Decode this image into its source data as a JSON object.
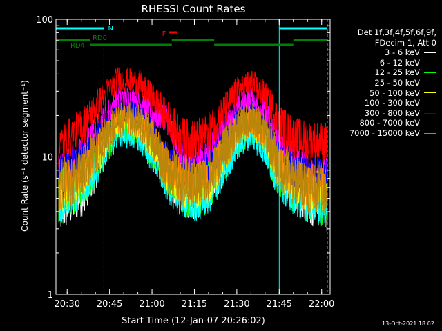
{
  "chart_data": {
    "type": "line",
    "title": "RHESSI Count Rates",
    "xlabel": "Start Time (12-Jan-07 20:26:02)",
    "ylabel": "Count Rate (s⁻¹ detector segment⁻¹)",
    "yscale": "log",
    "xlim": [
      "20:26:02",
      "22:03"
    ],
    "ylim": [
      1,
      100
    ],
    "xticks": [
      "20:30",
      "20:45",
      "21:00",
      "21:15",
      "21:30",
      "21:45",
      "22:00"
    ],
    "yticks": [
      "1",
      "10",
      "100"
    ],
    "series": [
      {
        "name": "3 - 6 keV",
        "color": "#ffffff",
        "t": [
          "20:27",
          "20:35",
          "20:40",
          "20:48",
          "20:55",
          "21:00",
          "21:05",
          "21:10",
          "21:15",
          "21:20",
          "21:25",
          "21:30",
          "21:35",
          "21:40",
          "21:45",
          "21:50",
          "21:55",
          "22:02"
        ],
        "values": [
          3.8,
          5.0,
          7.5,
          20.0,
          19.0,
          13.0,
          7.5,
          5.2,
          4.8,
          5.5,
          8.0,
          15.0,
          19.0,
          14.0,
          8.0,
          5.5,
          4.5,
          4.0
        ]
      },
      {
        "name": "6 - 12 keV",
        "color": "#ff00ff",
        "t": [
          "20:27",
          "20:35",
          "20:40",
          "20:48",
          "20:55",
          "21:00",
          "21:05",
          "21:10",
          "21:15",
          "21:20",
          "21:25",
          "21:30",
          "21:35",
          "21:40",
          "21:45",
          "21:50",
          "21:55",
          "22:02"
        ],
        "values": [
          7.5,
          10.0,
          15.0,
          27.0,
          26.0,
          20.0,
          20.0,
          10.0,
          8.5,
          10.0,
          15.0,
          22.0,
          27.0,
          21.0,
          12.0,
          9.0,
          8.0,
          7.5
        ]
      },
      {
        "name": "12 - 25 keV",
        "color": "#00ff00",
        "t": [
          "20:27",
          "20:35",
          "20:40",
          "20:48",
          "20:55",
          "21:00",
          "21:05",
          "21:10",
          "21:15",
          "21:20",
          "21:25",
          "21:30",
          "21:35",
          "21:40",
          "21:45",
          "21:50",
          "21:55",
          "22:02"
        ],
        "values": [
          5.0,
          6.5,
          9.0,
          17.0,
          16.5,
          12.0,
          7.5,
          5.8,
          5.3,
          6.0,
          9.0,
          14.0,
          17.0,
          13.0,
          7.5,
          6.0,
          5.3,
          5.0
        ]
      },
      {
        "name": "25 - 50 keV",
        "color": "#00ffff",
        "t": [
          "20:27",
          "20:35",
          "20:40",
          "20:48",
          "20:55",
          "21:00",
          "21:05",
          "21:10",
          "21:15",
          "21:20",
          "21:25",
          "21:30",
          "21:35",
          "21:40",
          "21:45",
          "21:50",
          "21:55",
          "22:02"
        ],
        "values": [
          4.5,
          5.5,
          8.0,
          14.5,
          14.0,
          10.0,
          6.5,
          5.0,
          4.6,
          5.2,
          7.5,
          12.0,
          14.5,
          11.0,
          6.5,
          5.2,
          4.7,
          4.5
        ]
      },
      {
        "name": "50 - 100 keV",
        "color": "#ffff00",
        "t": [
          "20:27",
          "20:35",
          "20:40",
          "20:48",
          "20:55",
          "21:00",
          "21:05",
          "21:10",
          "21:15",
          "21:20",
          "21:25",
          "21:30",
          "21:35",
          "21:40",
          "21:45",
          "21:50",
          "21:55",
          "22:02"
        ],
        "values": [
          5.5,
          7.0,
          10.0,
          18.0,
          17.5,
          13.0,
          8.0,
          6.3,
          5.8,
          6.5,
          10.0,
          15.0,
          18.0,
          14.0,
          8.0,
          6.5,
          5.8,
          5.5
        ]
      },
      {
        "name": "100 - 300 keV",
        "color": "#ff0000",
        "t": [
          "20:27",
          "20:35",
          "20:40",
          "20:48",
          "20:55",
          "21:00",
          "21:05",
          "21:10",
          "21:15",
          "21:20",
          "21:25",
          "21:30",
          "21:35",
          "21:40",
          "21:45",
          "21:50",
          "21:55",
          "22:02"
        ],
        "values": [
          12.0,
          16.0,
          23.0,
          37.0,
          35.0,
          27.0,
          20.0,
          14.0,
          13.0,
          15.0,
          21.0,
          30.0,
          35.0,
          28.0,
          18.0,
          14.0,
          13.0,
          12.5
        ]
      },
      {
        "name": "300 - 800 keV",
        "color": "#0000ff",
        "t": [
          "20:27",
          "20:35",
          "20:40",
          "20:48",
          "20:55",
          "21:00",
          "21:05",
          "21:10",
          "21:15",
          "21:20",
          "21:25",
          "21:30",
          "21:35",
          "21:40",
          "21:45",
          "21:50",
          "21:55",
          "22:02"
        ],
        "values": [
          7.5,
          9.5,
          13.0,
          22.0,
          21.0,
          16.0,
          10.0,
          8.0,
          7.5,
          8.5,
          12.0,
          18.0,
          21.0,
          16.5,
          10.0,
          8.0,
          7.5,
          7.5
        ]
      },
      {
        "name": "800 - 7000 keV",
        "color": "#ff8c00",
        "t": [
          "20:27",
          "20:35",
          "20:40",
          "20:48",
          "20:55",
          "21:00",
          "21:05",
          "21:10",
          "21:15",
          "21:20",
          "21:25",
          "21:30",
          "21:35",
          "21:40",
          "21:45",
          "21:50",
          "21:55",
          "22:02"
        ],
        "values": [
          6.0,
          7.5,
          11.0,
          19.0,
          18.5,
          14.0,
          8.5,
          6.8,
          6.2,
          7.0,
          10.5,
          16.0,
          19.0,
          15.0,
          8.5,
          7.0,
          6.2,
          6.0
        ]
      },
      {
        "name": "7000 - 15000 keV",
        "color": "#b8860b",
        "t": [
          "20:27",
          "20:35",
          "20:40",
          "20:48",
          "20:55",
          "21:00",
          "21:05",
          "21:10",
          "21:15",
          "21:20",
          "21:25",
          "21:30",
          "21:35",
          "21:40",
          "21:45",
          "21:50",
          "21:55",
          "22:02"
        ],
        "values": [
          6.0,
          7.5,
          11.0,
          19.0,
          18.5,
          14.0,
          8.5,
          6.8,
          6.2,
          7.0,
          10.5,
          16.0,
          19.0,
          15.0,
          8.5,
          7.0,
          6.2,
          6.0
        ]
      }
    ],
    "vertical_lines": [
      {
        "t": "20:43",
        "color": "#00ffff",
        "style": "dashed"
      },
      {
        "t": "21:45",
        "color": "#00ffff",
        "style": "solid"
      },
      {
        "t": "22:02",
        "color": "#00ffff",
        "style": "dashed"
      }
    ],
    "annotations": [
      {
        "label": "N",
        "color": "#00ffff",
        "segments": [
          [
            "20:26:02",
            "20:43"
          ],
          [
            "21:45",
            "22:02"
          ]
        ]
      },
      {
        "label": "F",
        "color": "#ff0000",
        "segments": [
          [
            "21:06",
            "21:09"
          ]
        ]
      },
      {
        "label": "RD0",
        "color": "#008000",
        "segments": [
          [
            "20:26:02",
            "20:38"
          ],
          [
            "21:07",
            "21:22"
          ],
          [
            "21:50",
            "22:02"
          ]
        ]
      },
      {
        "label": "RD4",
        "color": "#008000",
        "segments": [
          [
            "20:38",
            "21:07"
          ],
          [
            "21:22",
            "21:50"
          ]
        ]
      }
    ],
    "legend": {
      "placement": "right",
      "header": [
        "Det 1f,3f,4f,5f,6f,9f,",
        "FDecim 1, Att 0"
      ]
    }
  },
  "timestamp": "13-Oct-2021 18:02"
}
